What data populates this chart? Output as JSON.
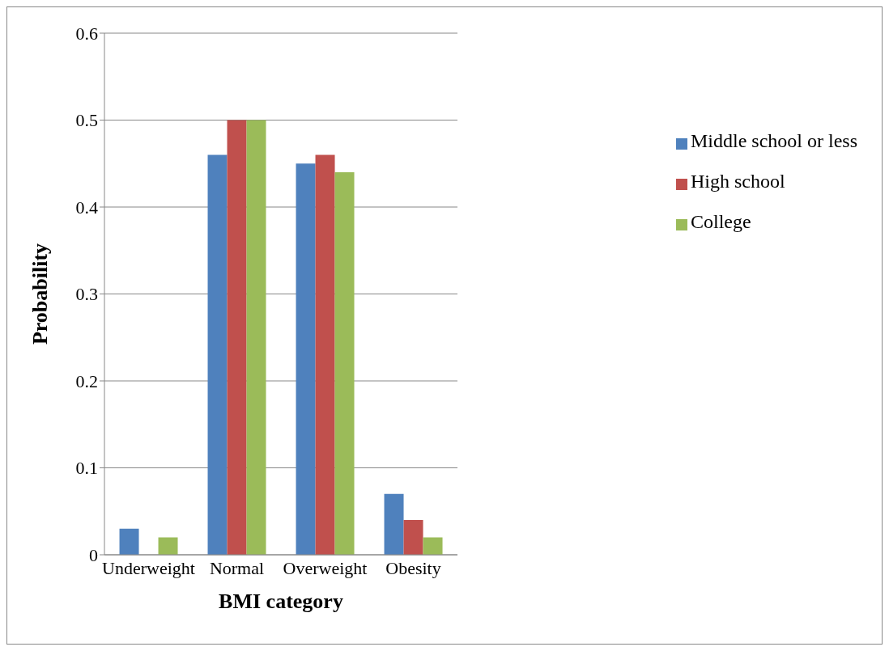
{
  "chart_data": {
    "type": "bar",
    "xlabel": "BMI category",
    "ylabel": "Probability",
    "categories": [
      "Underweight",
      "Normal",
      "Overweight",
      "Obesity"
    ],
    "series": [
      {
        "name": "Middle school or less",
        "color": "#4f81bd",
        "values": [
          0.03,
          0.46,
          0.45,
          0.07
        ]
      },
      {
        "name": "High school",
        "color": "#c0504d",
        "values": [
          0,
          0.5,
          0.46,
          0.04
        ]
      },
      {
        "name": "College",
        "color": "#9bbb59",
        "values": [
          0.02,
          0.5,
          0.44,
          0.02
        ]
      }
    ],
    "ylim": [
      0,
      0.6
    ],
    "yticks": [
      0,
      0.1,
      0.2,
      0.3,
      0.4,
      0.5,
      0.6
    ],
    "grid": "y",
    "legend": "right"
  }
}
